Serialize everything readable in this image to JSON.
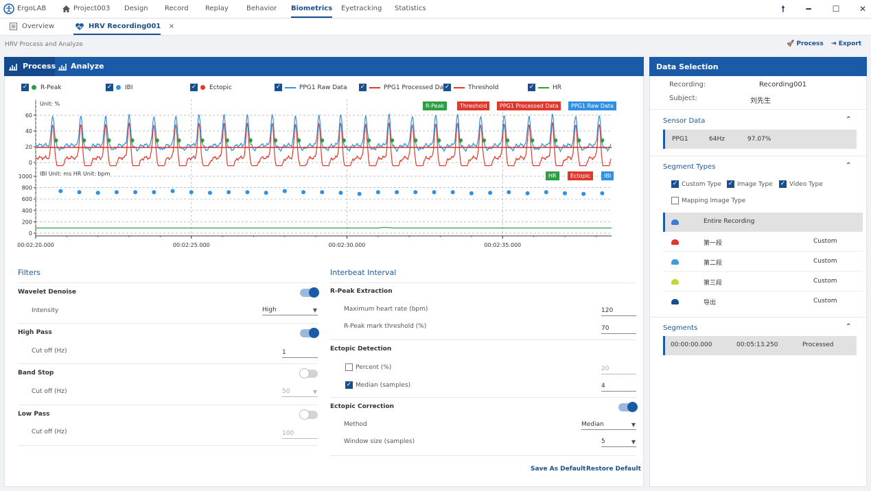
{
  "app": {
    "name": "ErgoLAB",
    "project": "Project003"
  },
  "nav": [
    "Design",
    "Record",
    "Replay",
    "Behavior",
    "Biometrics",
    "Eyetracking",
    "Statistics"
  ],
  "nav_active": "Biometrics",
  "window_controls": {
    "pin": "pin-icon",
    "minimize": "minimize-icon",
    "maximize": "maximize-icon",
    "close": "close-icon"
  },
  "tabs": {
    "overview": "Overview",
    "recording": "HRV Recording001",
    "close": "×"
  },
  "subtitle": "HRV Process and Analyze",
  "actions": {
    "process": "Process",
    "export": "Export"
  },
  "main_tabs": {
    "process": "Process",
    "analyze": "Analyze"
  },
  "legend": [
    {
      "label": "R-Peak",
      "checked": true,
      "kind": "dot",
      "color": "#2e9e44"
    },
    {
      "label": "IBI",
      "checked": true,
      "kind": "dot",
      "color": "#2e90e6"
    },
    {
      "label": "Ectopic",
      "checked": true,
      "kind": "dot",
      "color": "#e2382c"
    },
    {
      "label": "PPG1 Raw Data",
      "checked": true,
      "kind": "line",
      "color": "#2e90e6"
    },
    {
      "label": "PPG1 Processed Data",
      "checked": true,
      "kind": "line",
      "color": "#e2382c"
    },
    {
      "label": "Threshold",
      "checked": true,
      "kind": "line",
      "color": "#e2382c"
    },
    {
      "label": "HR",
      "checked": true,
      "kind": "line",
      "color": "#2e9e44"
    }
  ],
  "chart": {
    "top_unit": "Unit: %",
    "bottom_unit": "IBI Unit: ms HR Unit: bpm",
    "top_ticks": [
      "60",
      "40",
      "20",
      "0"
    ],
    "bottom_ticks": [
      "1000",
      "800",
      "600",
      "400",
      "200",
      "0"
    ],
    "time_ticks": [
      "00:02:20.000",
      "00:02:25.000",
      "00:02:30.000",
      "00:02:35.000"
    ],
    "badges_top": [
      {
        "text": "R-Peak",
        "color": "#2e9e44"
      },
      {
        "text": "Threshold",
        "color": "#e2382c"
      },
      {
        "text": "PPG1 Processed Data",
        "color": "#e2382c"
      },
      {
        "text": "PPG1 Raw Data",
        "color": "#2e90e6"
      }
    ],
    "badges_bottom": [
      {
        "text": "HR",
        "color": "#2e9e44"
      },
      {
        "text": "Ectopic",
        "color": "#e2382c"
      },
      {
        "text": "IBI",
        "color": "#2e90e6"
      }
    ]
  },
  "chart_data": {
    "type": "line",
    "x_range": [
      "00:02:20.000",
      "00:02:38.500"
    ],
    "x_seconds": [
      140,
      140.5,
      141,
      141.5,
      142,
      142.5,
      143,
      143.5,
      144,
      144.5,
      145,
      145.5,
      146,
      146.5,
      147,
      147.5,
      148,
      148.5,
      149,
      149.5,
      150,
      150.5,
      151,
      151.5,
      152,
      152.5,
      153,
      153.5,
      154,
      154.5,
      155,
      155.5,
      156,
      156.5,
      157,
      157.5,
      158,
      158.5
    ],
    "series": [
      {
        "name": "PPG1 Raw Data",
        "ylim": [
          -5,
          70
        ],
        "unit": "%",
        "peaks": 62,
        "baseline": 22
      },
      {
        "name": "PPG1 Processed Data",
        "ylim": [
          -5,
          70
        ],
        "unit": "%",
        "peaks": 55,
        "troughs": -2
      },
      {
        "name": "Threshold",
        "value": 19
      },
      {
        "name": "R-Peak",
        "value": 28
      },
      {
        "name": "IBI",
        "unit": "ms",
        "ylim": [
          0,
          1000
        ],
        "values": [
          740,
          720,
          710,
          720,
          720,
          720,
          740,
          720,
          710,
          720,
          720,
          710,
          740,
          720,
          720,
          710,
          690,
          720,
          720,
          720,
          720,
          720,
          700,
          710,
          720,
          700,
          720,
          700,
          690,
          700
        ]
      },
      {
        "name": "HR",
        "unit": "bpm",
        "ylim": [
          0,
          1000
        ],
        "value": 90
      }
    ],
    "peak_times_s": [
      140.55,
      141.45,
      142.25,
      143.0,
      143.8,
      144.5,
      145.25,
      146.05,
      146.8,
      147.6,
      148.35,
      149.1,
      149.8,
      150.6,
      151.35,
      152.1,
      152.85,
      153.55,
      154.3,
      155.05,
      155.85,
      156.6,
      157.35,
      158.1
    ]
  },
  "filters": {
    "title": "Filters",
    "wavelet": {
      "label": "Wavelet Denoise",
      "on": true,
      "sub": "Intensity",
      "value": "High"
    },
    "highpass": {
      "label": "High Pass",
      "on": true,
      "sub": "Cut off (Hz)",
      "value": "1"
    },
    "bandstop": {
      "label": "Band Stop",
      "on": false,
      "sub": "Cut off (Hz)",
      "value": "50"
    },
    "lowpass": {
      "label": "Low Pass",
      "on": false,
      "sub": "Cut off (Hz)",
      "value": "100"
    }
  },
  "ibi": {
    "title": "Interbeat Interval",
    "rpeak": {
      "label": "R-Peak Extraction",
      "max_hr_label": "Maximum heart rate (bpm)",
      "max_hr": "120",
      "thresh_label": "R-Peak mark threshold (%)",
      "thresh": "70"
    },
    "ectopic": {
      "label": "Ectopic Detection",
      "percent_label": "Percent (%)",
      "percent": "20",
      "percent_checked": false,
      "median_label": "Median (samples)",
      "median": "4",
      "median_checked": true
    },
    "correction": {
      "label": "Ectopic Correction",
      "on": true,
      "method_label": "Method",
      "method": "Median",
      "window_label": "Window size (samples)",
      "window": "5"
    },
    "save_default": "Save As Default",
    "restore_default": "Restore Default"
  },
  "data_selection": {
    "title": "Data Selection",
    "recording_label": "Recording:",
    "recording": "Recording001",
    "subject_label": "Subject:",
    "subject": "刘先生",
    "sensor_title": "Sensor Data",
    "sensor": {
      "name": "PPG1",
      "rate": "64Hz",
      "quality": "97.07%"
    },
    "segtypes_title": "Segment Types",
    "segtypes": [
      {
        "label": "Custom Type",
        "checked": true
      },
      {
        "label": "Image Type",
        "checked": true
      },
      {
        "label": "Video Type",
        "checked": true
      },
      {
        "label": "Mapping Image Type",
        "checked": false
      }
    ],
    "segment_list": [
      {
        "name": "Entire Recording",
        "type": "",
        "color": "#3a7bd5"
      },
      {
        "name": "第一段",
        "type": "Custom",
        "color": "#e2382c"
      },
      {
        "name": "第二段",
        "type": "Custom",
        "color": "#3a9fd5"
      },
      {
        "name": "第三段",
        "type": "Custom",
        "color": "#c5d43a"
      },
      {
        "name": "导出",
        "type": "Custom",
        "color": "#1a4f8f"
      }
    ],
    "segments_title": "Segments",
    "segment": {
      "start": "00:00:00.000",
      "end": "00:05:13.250",
      "status": "Processed"
    }
  }
}
